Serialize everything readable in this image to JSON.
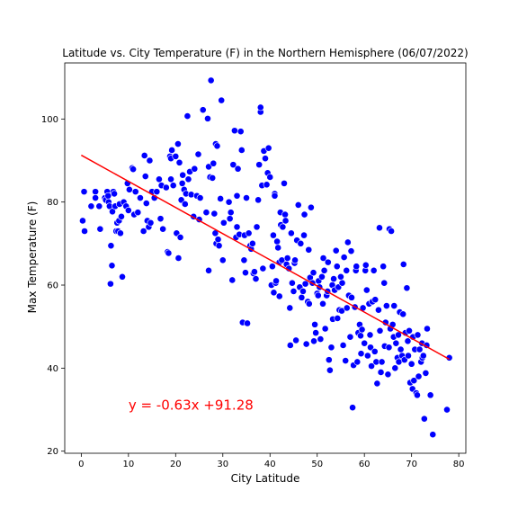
{
  "chart_data": {
    "type": "scatter",
    "title": "Latitude vs. City Temperature (F) in the Northern Hemisphere (06/07/2022)",
    "xlabel": "City Latitude",
    "ylabel": "Max Temperature (F)",
    "xlim": [
      -3.5,
      81.5
    ],
    "ylim": [
      19.5,
      113.5
    ],
    "x_ticks": [
      0,
      10,
      20,
      30,
      40,
      50,
      60,
      70,
      80
    ],
    "y_ticks": [
      20,
      40,
      60,
      80,
      100
    ],
    "grid": false,
    "legend": "none",
    "point_color": "#0000ff",
    "point_edge": "#ffffff",
    "line_color": "#ff0000",
    "regression": {
      "slope": -0.63,
      "intercept": 91.28,
      "x_range": [
        0,
        78
      ],
      "label": "y = -0.63x +91.28",
      "label_pos": [
        10,
        30
      ],
      "label_color": "#ff0000"
    },
    "points": [
      [
        0.3,
        75.5
      ],
      [
        0.6,
        82.5
      ],
      [
        0.7,
        73
      ],
      [
        2.1,
        79
      ],
      [
        3,
        82.5
      ],
      [
        3,
        81
      ],
      [
        3.8,
        79
      ],
      [
        4,
        73.5
      ],
      [
        5,
        81
      ],
      [
        5.2,
        80.5
      ],
      [
        5.5,
        82.5
      ],
      [
        5.7,
        81.5
      ],
      [
        5.8,
        80
      ],
      [
        6,
        79
      ],
      [
        6.2,
        60.3
      ],
      [
        6.3,
        69.5
      ],
      [
        6.5,
        64.7
      ],
      [
        6.6,
        77.7
      ],
      [
        6.8,
        82.5
      ],
      [
        7,
        82
      ],
      [
        7.2,
        79
      ],
      [
        7.4,
        73
      ],
      [
        7.6,
        75
      ],
      [
        7.8,
        73
      ],
      [
        8,
        75.5
      ],
      [
        8.1,
        79.5
      ],
      [
        8.3,
        72.5
      ],
      [
        8.5,
        76.5
      ],
      [
        8.7,
        62
      ],
      [
        9,
        80
      ],
      [
        9.5,
        79
      ],
      [
        9.8,
        84.5
      ],
      [
        10,
        78
      ],
      [
        10.2,
        83
      ],
      [
        10.8,
        88.2
      ],
      [
        11,
        87.9
      ],
      [
        11.2,
        77
      ],
      [
        11.5,
        82.5
      ],
      [
        12,
        77.5
      ],
      [
        12.5,
        81
      ],
      [
        13.2,
        73
      ],
      [
        13.4,
        91.2
      ],
      [
        13.6,
        86.2
      ],
      [
        13.8,
        79.7
      ],
      [
        14,
        75.5
      ],
      [
        14.3,
        74
      ],
      [
        14.5,
        90
      ],
      [
        14.7,
        75
      ],
      [
        15,
        82.5
      ],
      [
        15.5,
        81
      ],
      [
        16,
        82.5
      ],
      [
        16.5,
        85.5
      ],
      [
        16.8,
        76
      ],
      [
        17,
        84
      ],
      [
        17.3,
        73.5
      ],
      [
        18,
        83.5
      ],
      [
        18.3,
        68
      ],
      [
        18.5,
        67.7
      ],
      [
        18.8,
        91
      ],
      [
        19,
        90.5
      ],
      [
        19,
        85.5
      ],
      [
        19.2,
        92.5
      ],
      [
        19.5,
        84
      ],
      [
        20,
        91
      ],
      [
        20.2,
        72.5
      ],
      [
        20.5,
        94
      ],
      [
        20.6,
        66.5
      ],
      [
        20.8,
        89.5
      ],
      [
        21,
        71.5
      ],
      [
        21.2,
        80.5
      ],
      [
        21.4,
        84.5
      ],
      [
        21.5,
        86.5
      ],
      [
        21.8,
        83
      ],
      [
        22,
        79.5
      ],
      [
        22.2,
        82
      ],
      [
        22.5,
        100.7
      ],
      [
        22.7,
        85.5
      ],
      [
        23,
        87.3
      ],
      [
        23.3,
        81.8
      ],
      [
        23.8,
        76.5
      ],
      [
        24,
        88
      ],
      [
        24.5,
        81.5
      ],
      [
        24.8,
        91.5
      ],
      [
        25,
        75.8
      ],
      [
        25.2,
        81
      ],
      [
        25.8,
        102.2
      ],
      [
        26.5,
        77.5
      ],
      [
        26.8,
        100.1
      ],
      [
        27,
        63.5
      ],
      [
        27,
        88.5
      ],
      [
        27.3,
        86
      ],
      [
        27.5,
        109.3
      ],
      [
        27.8,
        85.8
      ],
      [
        28,
        89.3
      ],
      [
        28.2,
        77.2
      ],
      [
        28.4,
        72.5
      ],
      [
        28.5,
        94
      ],
      [
        28.6,
        70
      ],
      [
        28.8,
        93.5
      ],
      [
        29,
        71
      ],
      [
        29.2,
        69.5
      ],
      [
        29.5,
        80.8
      ],
      [
        29.7,
        104.5
      ],
      [
        30,
        66
      ],
      [
        30.2,
        75
      ],
      [
        31.3,
        80
      ],
      [
        31.5,
        76
      ],
      [
        31.7,
        77.5
      ],
      [
        32,
        61.2
      ],
      [
        32.2,
        89
      ],
      [
        32.5,
        97.2
      ],
      [
        32.8,
        71.5
      ],
      [
        33,
        81.5
      ],
      [
        33,
        74
      ],
      [
        33.2,
        88
      ],
      [
        33.5,
        72.2
      ],
      [
        33.8,
        97
      ],
      [
        34,
        92.5
      ],
      [
        34.2,
        51
      ],
      [
        34.5,
        66
      ],
      [
        34.6,
        72
      ],
      [
        34.8,
        63
      ],
      [
        35,
        81
      ],
      [
        35.2,
        50.8
      ],
      [
        35.5,
        72.5
      ],
      [
        35.8,
        69.5
      ],
      [
        36,
        68.7
      ],
      [
        36.3,
        70
      ],
      [
        36.5,
        62.8
      ],
      [
        36.7,
        63.2
      ],
      [
        37,
        61.5
      ],
      [
        37.2,
        74
      ],
      [
        37.5,
        80.5
      ],
      [
        37.7,
        89
      ],
      [
        38,
        101.7
      ],
      [
        38,
        102.8
      ],
      [
        38.3,
        84
      ],
      [
        38.5,
        64
      ],
      [
        38.7,
        92.3
      ],
      [
        39,
        90.5
      ],
      [
        39.3,
        84.2
      ],
      [
        39.5,
        87
      ],
      [
        39.7,
        93
      ],
      [
        40,
        86
      ],
      [
        40.3,
        60
      ],
      [
        40.5,
        64.5
      ],
      [
        40.7,
        72
      ],
      [
        40.8,
        58.2
      ],
      [
        41,
        82
      ],
      [
        41,
        81.5
      ],
      [
        41.2,
        60.5
      ],
      [
        41.3,
        61
      ],
      [
        41.5,
        70.5
      ],
      [
        41.7,
        69
      ],
      [
        42,
        65.5
      ],
      [
        42,
        57.3
      ],
      [
        42.2,
        77.5
      ],
      [
        42.3,
        74.5
      ],
      [
        42.5,
        66
      ],
      [
        42.7,
        74
      ],
      [
        43,
        84.5
      ],
      [
        43.2,
        77
      ],
      [
        43.3,
        75.5
      ],
      [
        43.5,
        65
      ],
      [
        43.7,
        66.5
      ],
      [
        44,
        64
      ],
      [
        44.2,
        54.5
      ],
      [
        44.3,
        45.5
      ],
      [
        44.5,
        72.5
      ],
      [
        44.7,
        60.5
      ],
      [
        45,
        58.5
      ],
      [
        45.2,
        65.3
      ],
      [
        45.3,
        66
      ],
      [
        45.5,
        46.7
      ],
      [
        45.7,
        70.8
      ],
      [
        46,
        79.3
      ],
      [
        46.3,
        59.5
      ],
      [
        46.5,
        70
      ],
      [
        46.7,
        57
      ],
      [
        47,
        58.5
      ],
      [
        47.2,
        72
      ],
      [
        47.3,
        77
      ],
      [
        47.5,
        60.3
      ],
      [
        47.7,
        45.8
      ],
      [
        48,
        56
      ],
      [
        48.2,
        68.5
      ],
      [
        48.3,
        55.5
      ],
      [
        48.5,
        61.8
      ],
      [
        48.7,
        78.7
      ],
      [
        49,
        60.5
      ],
      [
        49.2,
        63
      ],
      [
        49.3,
        46.5
      ],
      [
        49.5,
        50.5
      ],
      [
        49.7,
        48.5
      ],
      [
        50,
        58
      ],
      [
        50.2,
        57.5
      ],
      [
        50.3,
        61
      ],
      [
        50.5,
        59.5
      ],
      [
        50.7,
        47
      ],
      [
        51,
        62
      ],
      [
        51.2,
        55.5
      ],
      [
        51.3,
        66.5
      ],
      [
        51.5,
        63.5
      ],
      [
        51.7,
        49.5
      ],
      [
        52,
        57.5
      ],
      [
        52.2,
        58.5
      ],
      [
        52.3,
        65.5
      ],
      [
        52.5,
        42
      ],
      [
        52.7,
        39.5
      ],
      [
        53,
        45
      ],
      [
        53.2,
        60
      ],
      [
        53.3,
        51.8
      ],
      [
        53.5,
        61.5
      ],
      [
        53.7,
        58.8
      ],
      [
        54,
        68.3
      ],
      [
        54.2,
        64.5
      ],
      [
        54.3,
        52
      ],
      [
        54.5,
        59.5
      ],
      [
        54.7,
        54
      ],
      [
        55,
        62
      ],
      [
        55.2,
        53.8
      ],
      [
        55.3,
        60.5
      ],
      [
        55.5,
        45.5
      ],
      [
        55.7,
        66.7
      ],
      [
        56,
        41.8
      ],
      [
        56.2,
        63.5
      ],
      [
        56.3,
        54.5
      ],
      [
        56.5,
        70.3
      ],
      [
        56.7,
        57.5
      ],
      [
        57,
        47.5
      ],
      [
        57.2,
        68.2
      ],
      [
        57.3,
        57
      ],
      [
        57.5,
        30.5
      ],
      [
        57.7,
        40.7
      ],
      [
        58,
        54.7
      ],
      [
        58.2,
        63.5
      ],
      [
        58.3,
        64.5
      ],
      [
        58.5,
        41.5
      ],
      [
        58.7,
        48.5
      ],
      [
        59,
        50.5
      ],
      [
        59.2,
        47.8
      ],
      [
        59.3,
        43.5
      ],
      [
        59.5,
        49.3
      ],
      [
        59.7,
        54.5
      ],
      [
        60,
        46
      ],
      [
        60.2,
        63.5
      ],
      [
        60.3,
        64.8
      ],
      [
        60.5,
        58.8
      ],
      [
        60.7,
        43
      ],
      [
        61,
        55.5
      ],
      [
        61.2,
        48
      ],
      [
        61.3,
        45
      ],
      [
        61.5,
        40.5
      ],
      [
        61.7,
        56
      ],
      [
        62,
        63.5
      ],
      [
        62.2,
        44
      ],
      [
        62.3,
        56.5
      ],
      [
        62.5,
        41.5
      ],
      [
        62.7,
        36.3
      ],
      [
        63,
        54
      ],
      [
        63.2,
        73.8
      ],
      [
        63.3,
        49
      ],
      [
        63.5,
        39
      ],
      [
        63.7,
        41.5
      ],
      [
        64,
        64.5
      ],
      [
        64.2,
        60.5
      ],
      [
        64.3,
        45.3
      ],
      [
        64.5,
        51
      ],
      [
        64.7,
        55
      ],
      [
        65,
        38.5
      ],
      [
        65.2,
        45
      ],
      [
        65.3,
        73.5
      ],
      [
        65.5,
        49.5
      ],
      [
        65.7,
        73
      ],
      [
        66,
        50.5
      ],
      [
        66.2,
        47.5
      ],
      [
        66.3,
        55
      ],
      [
        66.5,
        40
      ],
      [
        66.7,
        46
      ],
      [
        67,
        42.5
      ],
      [
        67.2,
        48
      ],
      [
        67.3,
        41.5
      ],
      [
        67.5,
        53.5
      ],
      [
        67.7,
        44.5
      ],
      [
        68,
        43
      ],
      [
        68.2,
        53
      ],
      [
        68.3,
        65
      ],
      [
        68.5,
        42
      ],
      [
        68.7,
        48.5
      ],
      [
        69,
        59.3
      ],
      [
        69.2,
        46.5
      ],
      [
        69.3,
        43
      ],
      [
        69.5,
        49
      ],
      [
        69.7,
        36.5
      ],
      [
        70,
        41
      ],
      [
        70.2,
        35
      ],
      [
        70.3,
        47.5
      ],
      [
        70.5,
        37
      ],
      [
        70.7,
        44.5
      ],
      [
        71,
        34
      ],
      [
        71.2,
        33.5
      ],
      [
        71.3,
        48
      ],
      [
        71.5,
        38
      ],
      [
        71.7,
        44.5
      ],
      [
        72,
        41.5
      ],
      [
        72.2,
        46
      ],
      [
        72.3,
        42.5
      ],
      [
        72.5,
        43
      ],
      [
        72.7,
        27.8
      ],
      [
        73,
        38.8
      ],
      [
        73.2,
        45.5
      ],
      [
        73.3,
        49.5
      ],
      [
        74,
        33.5
      ],
      [
        74.5,
        24
      ],
      [
        77.5,
        30
      ],
      [
        78,
        42.5
      ]
    ]
  }
}
